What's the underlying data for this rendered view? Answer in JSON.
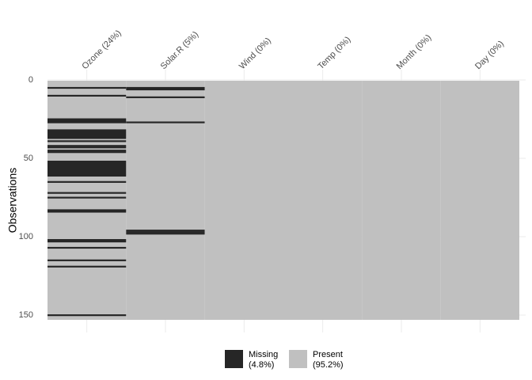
{
  "chart_data": {
    "type": "missingness",
    "y_label": "Observations",
    "columns": [
      "Ozone (24%)",
      "Solar.R (5%)",
      "Wind (0%)",
      "Temp (0%)",
      "Month (0%)",
      "Day (0%)"
    ],
    "missing_rows": [
      [
        5,
        10,
        25,
        26,
        27,
        32,
        33,
        34,
        35,
        36,
        37,
        39,
        42,
        43,
        45,
        46,
        52,
        53,
        54,
        55,
        56,
        57,
        58,
        59,
        60,
        61,
        65,
        72,
        75,
        83,
        84,
        102,
        103,
        107,
        115,
        119,
        150
      ],
      [
        5,
        6,
        11,
        27,
        96,
        97,
        98
      ],
      [],
      [],
      [],
      []
    ],
    "missing_color": "#262626",
    "present_color": "#c0c0c0",
    "legend": [
      {
        "name": "Missing",
        "share": "(4.8%)",
        "color": "#262626"
      },
      {
        "name": "Present",
        "share": "(95.2%)",
        "color": "#c0c0c0"
      }
    ],
    "ylim": [
      0,
      153
    ],
    "yticks": [
      0,
      50,
      100,
      150
    ],
    "y_reversed": true,
    "grid": true
  }
}
